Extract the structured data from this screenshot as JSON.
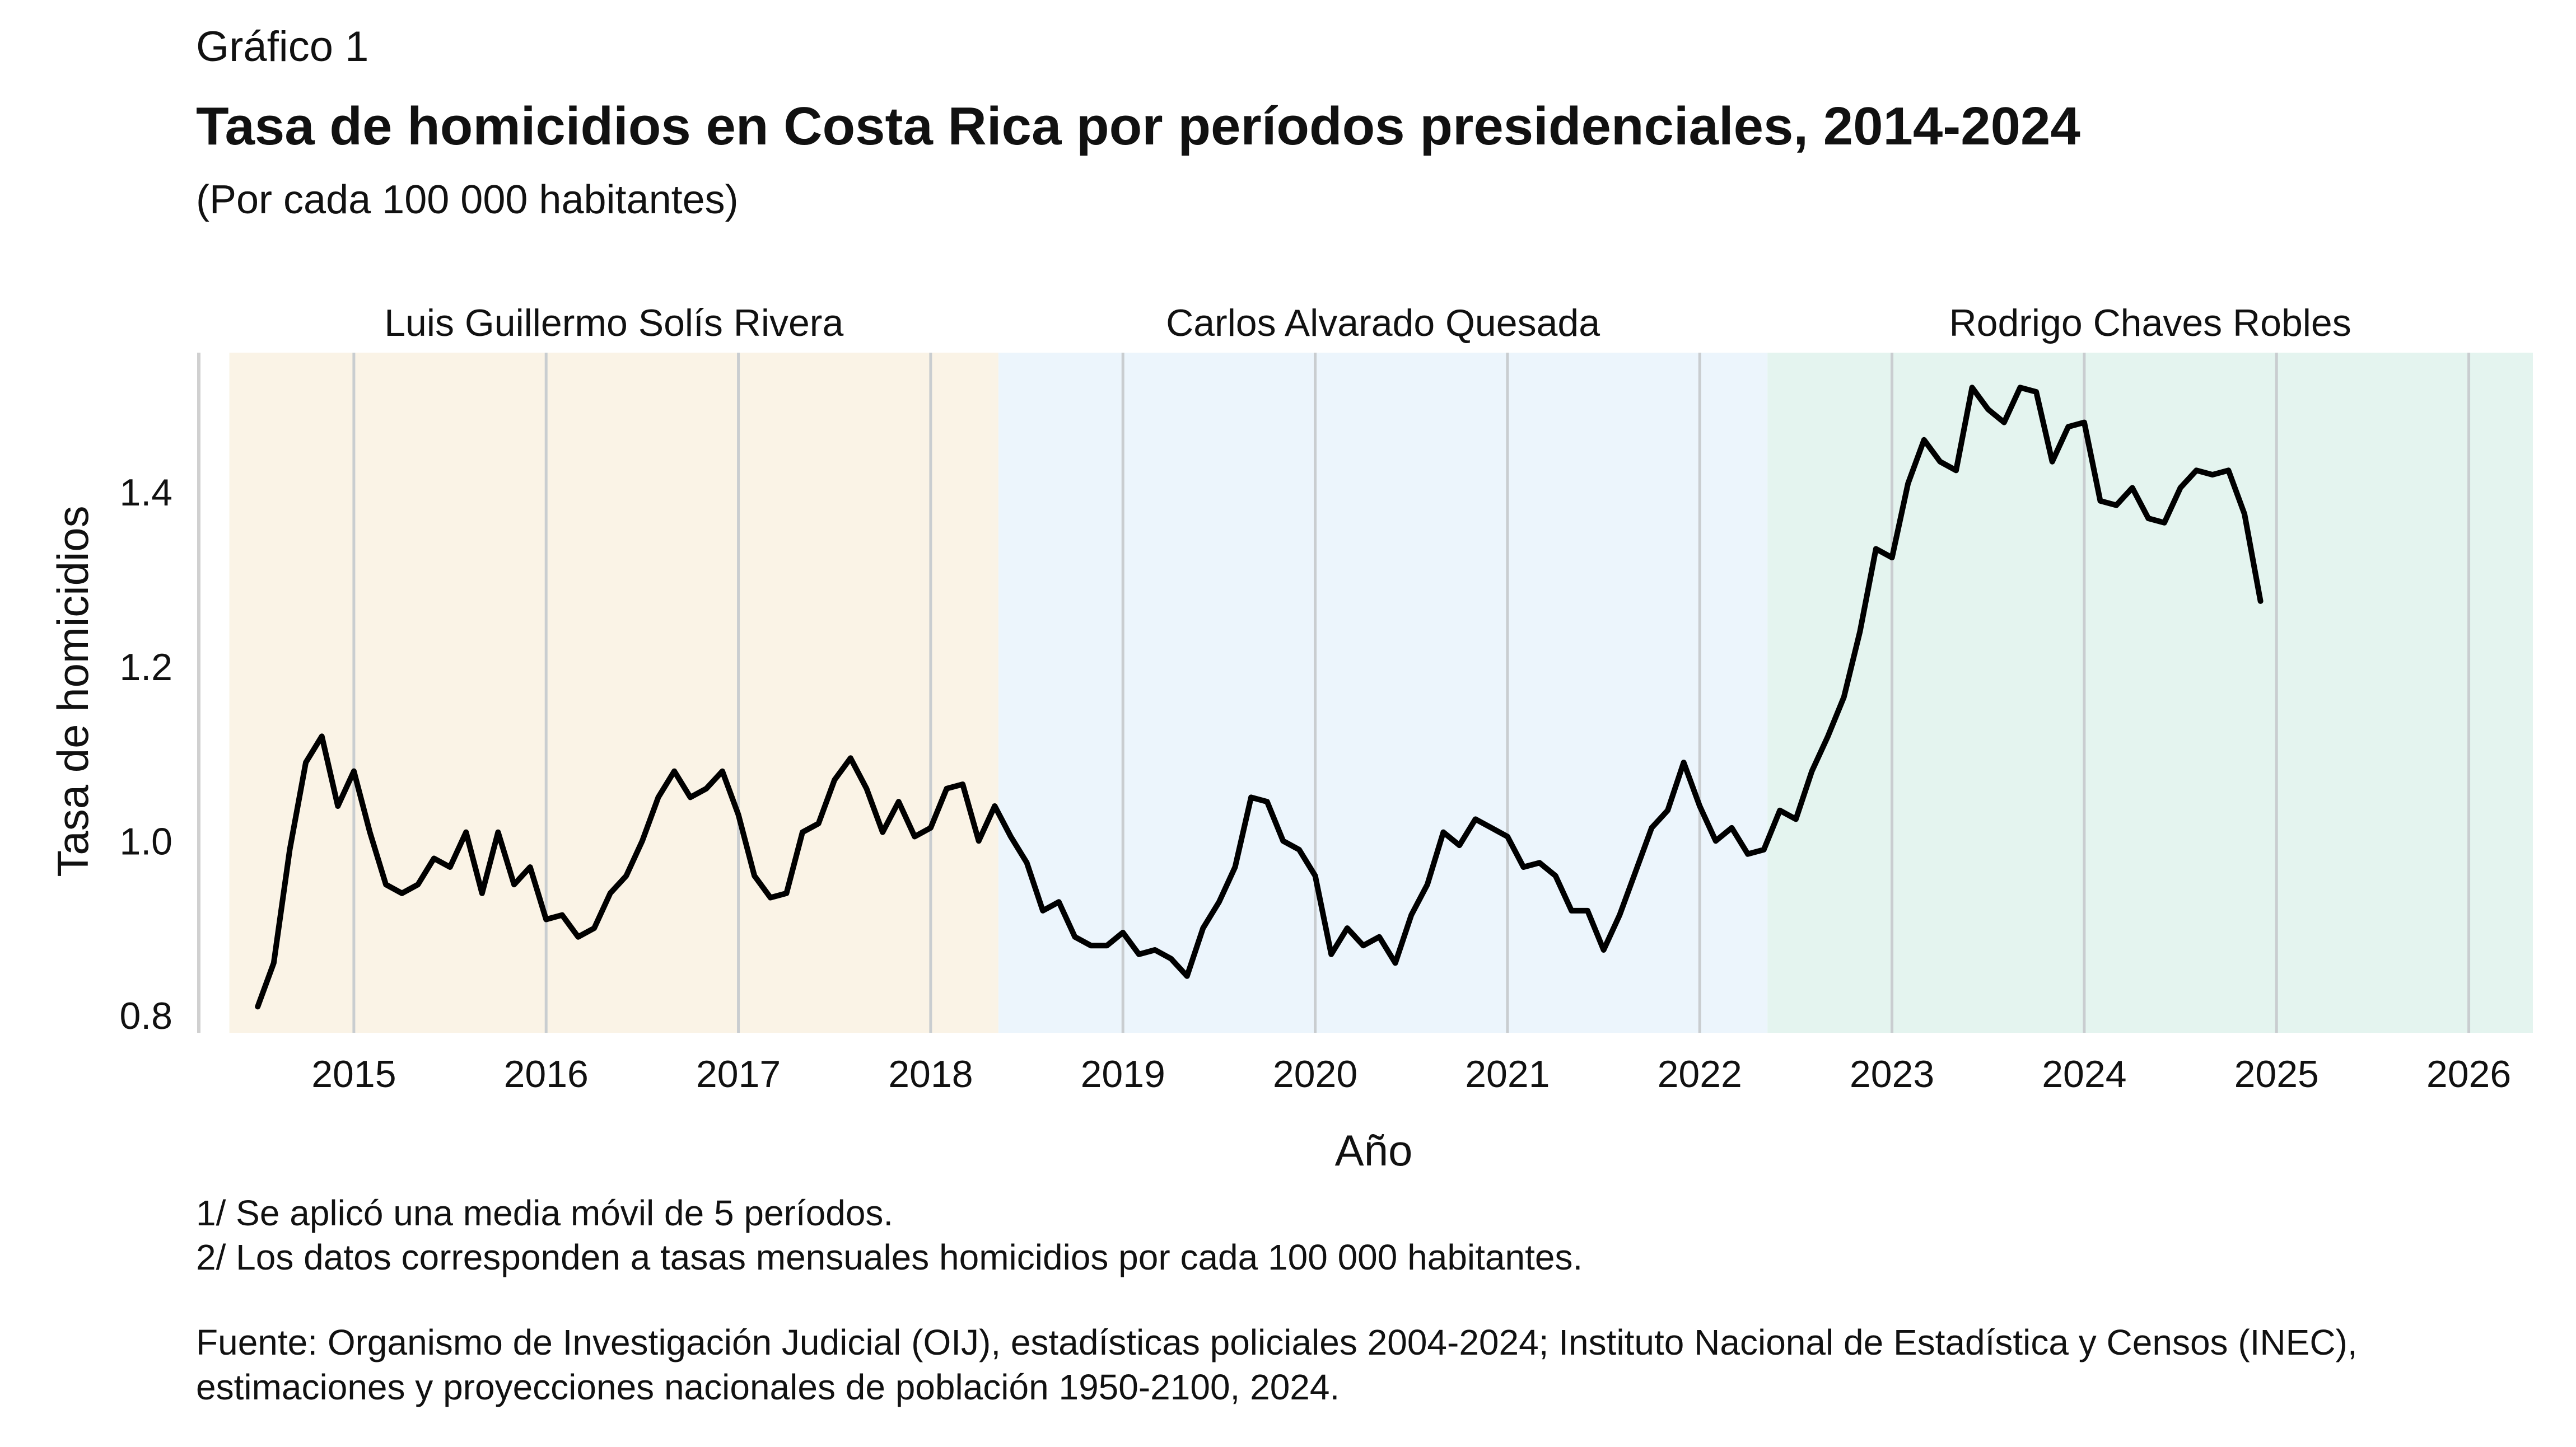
{
  "header": {
    "kicker": "Gráfico 1",
    "title": "Tasa de homicidios en Costa Rica por períodos presidenciales, 2014-2024",
    "subtitle": "(Por cada 100 000 habitantes)"
  },
  "chart_data": {
    "type": "line",
    "xlabel": "Año",
    "ylabel": "Tasa de homicidios",
    "x_ticks": [
      "2015",
      "2016",
      "2017",
      "2018",
      "2019",
      "2020",
      "2021",
      "2022",
      "2023",
      "2024",
      "2025",
      "2026"
    ],
    "y_ticks": [
      "0.8",
      "1.0",
      "1.2",
      "1.4"
    ],
    "xlim": [
      "2014-05",
      "2026-05"
    ],
    "ylim": [
      0.78,
      1.56
    ],
    "grid": "vertical",
    "periods": [
      {
        "label": "Luis Guillermo Solís Rivera",
        "start": "2014-05-08",
        "end": "2018-05-08",
        "color": "#faf3e6"
      },
      {
        "label": "Carlos Alvarado Quesada",
        "start": "2018-05-08",
        "end": "2022-05-08",
        "color": "#ecf5fc"
      },
      {
        "label": "Rodrigo Chaves Robles",
        "start": "2022-05-08",
        "end": "2026-05-08",
        "color": "#e4f4ef"
      }
    ],
    "series": [
      {
        "color": "#000000",
        "x": [
          "2014-07",
          "2014-08",
          "2014-09",
          "2014-10",
          "2014-11",
          "2014-12",
          "2015-01",
          "2015-02",
          "2015-03",
          "2015-04",
          "2015-05",
          "2015-06",
          "2015-07",
          "2015-08",
          "2015-09",
          "2015-10",
          "2015-11",
          "2015-12",
          "2016-01",
          "2016-02",
          "2016-03",
          "2016-04",
          "2016-05",
          "2016-06",
          "2016-07",
          "2016-08",
          "2016-09",
          "2016-10",
          "2016-11",
          "2016-12",
          "2017-01",
          "2017-02",
          "2017-03",
          "2017-04",
          "2017-05",
          "2017-06",
          "2017-07",
          "2017-08",
          "2017-09",
          "2017-10",
          "2017-11",
          "2017-12",
          "2018-01",
          "2018-02",
          "2018-03",
          "2018-04",
          "2018-05",
          "2018-06",
          "2018-07",
          "2018-08",
          "2018-09",
          "2018-10",
          "2018-11",
          "2018-12",
          "2019-01",
          "2019-02",
          "2019-03",
          "2019-04",
          "2019-05",
          "2019-06",
          "2019-07",
          "2019-08",
          "2019-09",
          "2019-10",
          "2019-11",
          "2019-12",
          "2020-01",
          "2020-02",
          "2020-03",
          "2020-04",
          "2020-05",
          "2020-06",
          "2020-07",
          "2020-08",
          "2020-09",
          "2020-10",
          "2020-11",
          "2020-12",
          "2021-01",
          "2021-02",
          "2021-03",
          "2021-04",
          "2021-05",
          "2021-06",
          "2021-07",
          "2021-08",
          "2021-09",
          "2021-10",
          "2021-11",
          "2021-12",
          "2022-01",
          "2022-02",
          "2022-03",
          "2022-04",
          "2022-05",
          "2022-06",
          "2022-07",
          "2022-08",
          "2022-09",
          "2022-10",
          "2022-11",
          "2022-12",
          "2023-01",
          "2023-02",
          "2023-03",
          "2023-04",
          "2023-05",
          "2023-06",
          "2023-07",
          "2023-08",
          "2023-09",
          "2023-10",
          "2023-11",
          "2023-12",
          "2024-01",
          "2024-02",
          "2024-03",
          "2024-04",
          "2024-05",
          "2024-06",
          "2024-07",
          "2024-08",
          "2024-09",
          "2024-10",
          "2024-11",
          "2024-12"
        ],
        "values": [
          0.81,
          0.86,
          0.99,
          1.09,
          1.12,
          1.04,
          1.08,
          1.01,
          0.95,
          0.94,
          0.95,
          0.98,
          0.97,
          1.01,
          0.94,
          1.01,
          0.95,
          0.97,
          0.91,
          0.915,
          0.89,
          0.9,
          0.94,
          0.96,
          1.0,
          1.05,
          1.08,
          1.05,
          1.06,
          1.08,
          1.03,
          0.96,
          0.935,
          0.94,
          1.01,
          1.02,
          1.07,
          1.095,
          1.06,
          1.01,
          1.045,
          1.005,
          1.015,
          1.06,
          1.065,
          1.0,
          1.04,
          1.005,
          0.975,
          0.92,
          0.93,
          0.89,
          0.88,
          0.88,
          0.895,
          0.87,
          0.875,
          0.865,
          0.845,
          0.9,
          0.93,
          0.97,
          1.05,
          1.045,
          1.0,
          0.99,
          0.96,
          0.87,
          0.9,
          0.88,
          0.89,
          0.86,
          0.915,
          0.95,
          1.01,
          0.995,
          1.025,
          1.015,
          1.005,
          0.97,
          0.975,
          0.96,
          0.92,
          0.92,
          0.875,
          0.915,
          0.965,
          1.015,
          1.035,
          1.09,
          1.04,
          1.0,
          1.015,
          0.985,
          0.99,
          1.035,
          1.025,
          1.08,
          1.12,
          1.165,
          1.24,
          1.335,
          1.325,
          1.41,
          1.46,
          1.435,
          1.425,
          1.52,
          1.495,
          1.48,
          1.52,
          1.515,
          1.435,
          1.475,
          1.48,
          1.39,
          1.385,
          1.405,
          1.37,
          1.365,
          1.405,
          1.425,
          1.42,
          1.425,
          1.375,
          1.275
        ]
      }
    ]
  },
  "notes": [
    "1/ Se aplicó una media móvil de 5 períodos.",
    "2/ Los datos corresponden a tasas mensuales homicidios por cada 100 000 habitantes."
  ],
  "source": "Fuente: Organismo de Investigación Judicial (OIJ), estadísticas policiales 2004-2024; Instituto Nacional de Estadística y Censos (INEC), estimaciones y proyecciones nacionales de población 1950-2100, 2024."
}
